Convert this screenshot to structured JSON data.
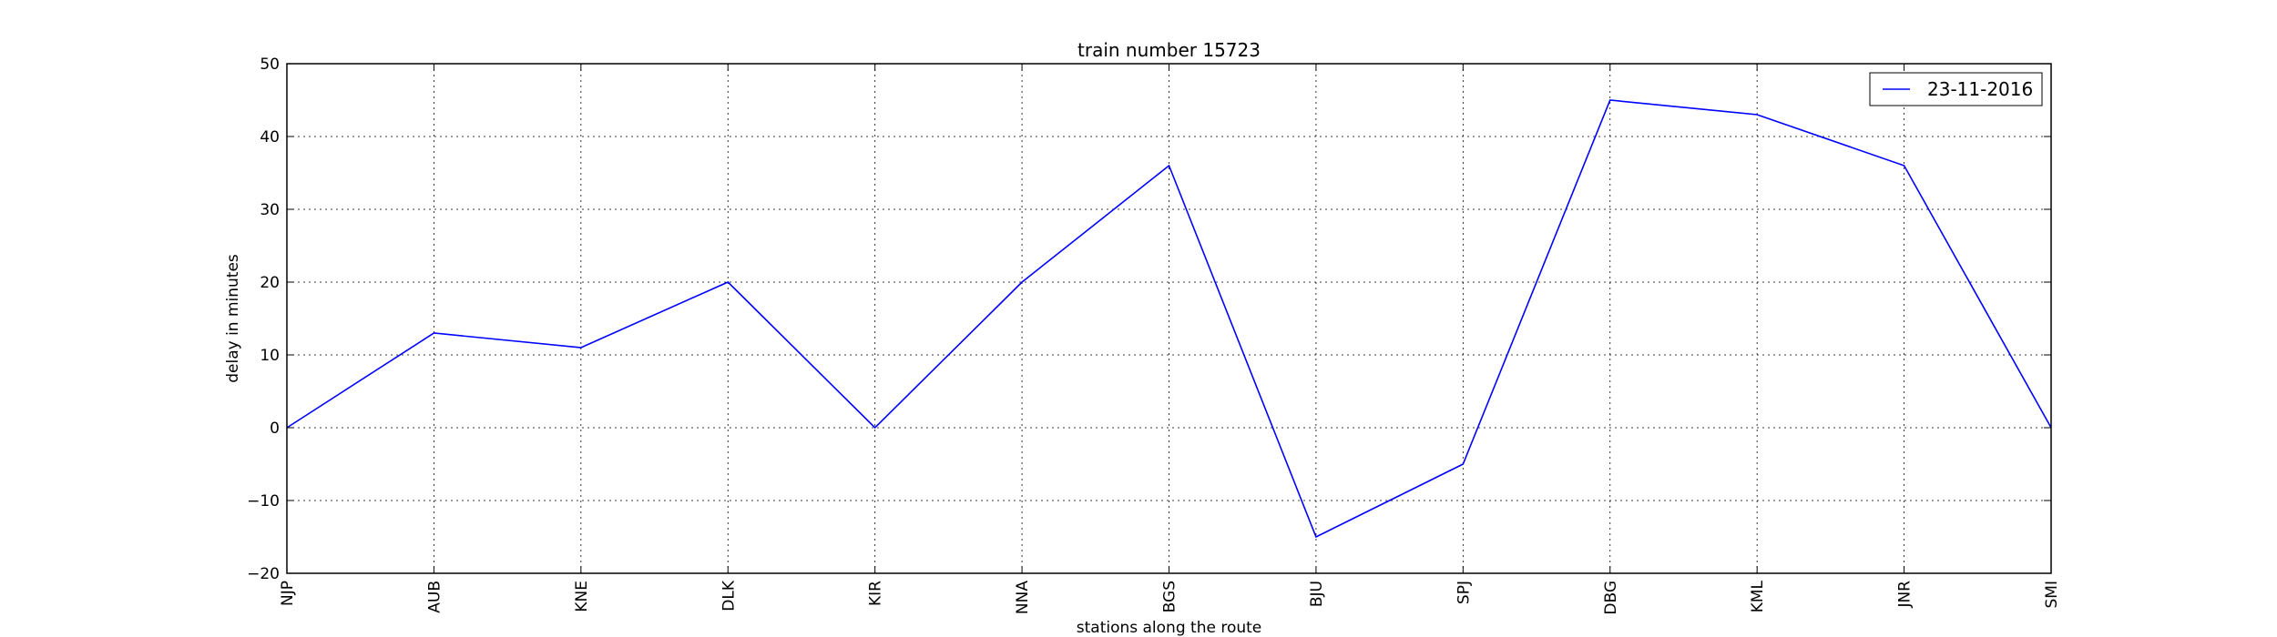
{
  "chart_data": {
    "type": "line",
    "title": "train number 15723",
    "xlabel": "stations along the route",
    "ylabel": "delay in minutes",
    "categories": [
      "NJP",
      "AUB",
      "KNE",
      "DLK",
      "KIR",
      "NNA",
      "BGS",
      "BJU",
      "SPJ",
      "DBG",
      "KML",
      "JNR",
      "SMI"
    ],
    "series": [
      {
        "name": "23-11-2016",
        "color": "#0000ff",
        "values": [
          0,
          13,
          11,
          20,
          0,
          20,
          36,
          -15,
          -5,
          45,
          43,
          36,
          0
        ]
      }
    ],
    "ylim": [
      -20,
      50
    ],
    "yticks": [
      -20,
      -10,
      0,
      10,
      20,
      30,
      40,
      50
    ],
    "ytick_labels": [
      "−20",
      "−10",
      "0",
      "10",
      "20",
      "30",
      "40",
      "50"
    ],
    "grid": true,
    "legend_position": "top-right"
  }
}
